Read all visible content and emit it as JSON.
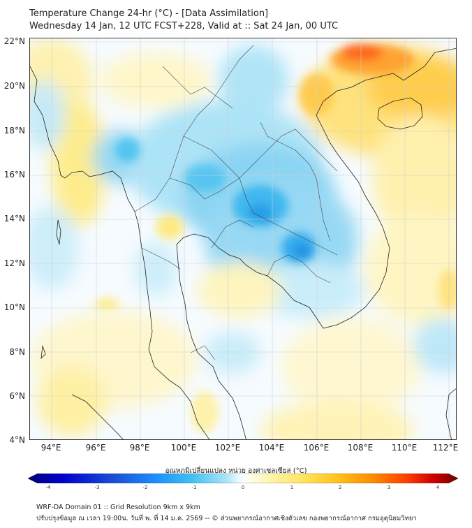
{
  "title": {
    "line1": "Temperature Change 24-hr (°C) - [Data Assimilation]",
    "line2": "Wednesday 14 Jan, 12 UTC FCST+228, Valid at :: Sat 24 Jan, 00 UTC"
  },
  "map": {
    "lat_labels": [
      "22°N",
      "20°N",
      "18°N",
      "16°N",
      "14°N",
      "12°N",
      "10°N",
      "8°N",
      "6°N",
      "4°N"
    ],
    "lon_labels": [
      "94°E",
      "96°E",
      "98°E",
      "100°E",
      "102°E",
      "104°E",
      "106°E",
      "108°E",
      "110°E",
      "112°E"
    ]
  },
  "colorbar": {
    "label": "อุณหภูมิเปลี่ยนแปลง หน่วย องศาเซลเซียส (°C)",
    "ticks": [
      "-4",
      "-3",
      "-2",
      "-1",
      "0",
      "1",
      "2",
      "3",
      "4"
    ],
    "colors": [
      "#00007a",
      "#0000cc",
      "#1a4fd6",
      "#1e90ff",
      "#40c0f0",
      "#a8e4f7",
      "#ffffff",
      "#fff5b0",
      "#ffe45c",
      "#ffc21a",
      "#ff8c00",
      "#ff4000",
      "#d40000",
      "#700000"
    ]
  },
  "footer": {
    "line1": "WRF-DA Domain 01 :: Grid Resolution 9km x 9km",
    "line2": "ปรับปรุงข้อมูล ณ เวลา 19:00น. วันที่ พ. ที่ 14 ม.ค. 2569 -- © ส่วนพยากรณ์อากาศเชิงตัวเลข กองพยากรณ์อากาศ กรมอุตุนิยมวิทยา"
  }
}
